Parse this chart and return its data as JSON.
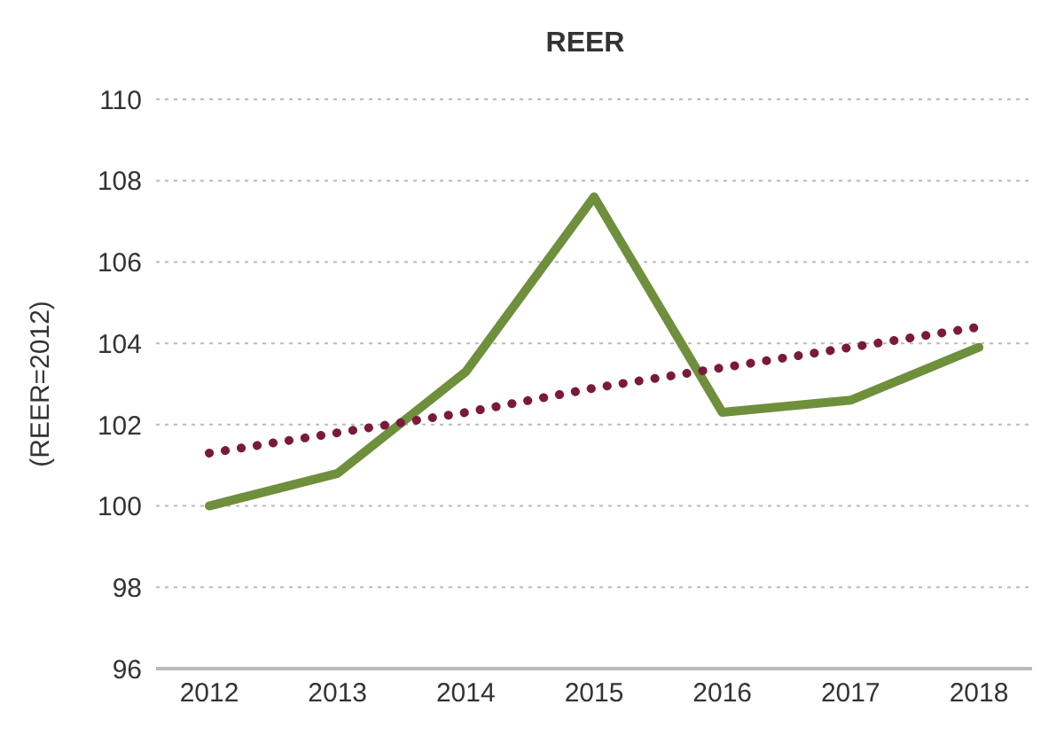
{
  "chart_data": {
    "type": "line",
    "title": "REER",
    "ylabel": "(REER=2012)",
    "categories": [
      "2012",
      "2013",
      "2014",
      "2015",
      "2016",
      "2017",
      "2018"
    ],
    "series": [
      {
        "color": "#6e8f3c",
        "values": [
          100.0,
          100.8,
          103.3,
          107.6,
          102.3,
          102.6,
          103.9
        ],
        "line_style": "solid"
      },
      {
        "color": "#7a1a3a",
        "values": [
          101.3,
          101.8,
          102.3,
          102.9,
          103.4,
          103.9,
          104.4
        ],
        "line_style": "dotted"
      }
    ],
    "ylim": [
      96,
      110
    ],
    "yticks": [
      96,
      98,
      100,
      102,
      104,
      106,
      108,
      110
    ],
    "grid": "y",
    "marker": "none"
  }
}
